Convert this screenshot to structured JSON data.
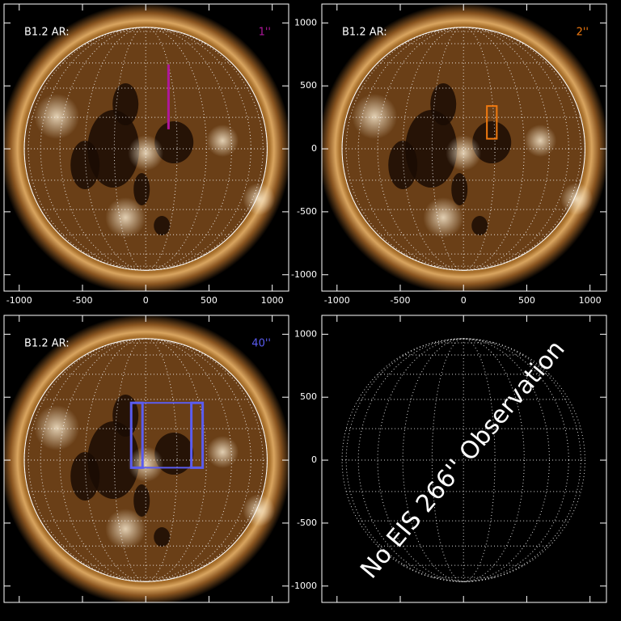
{
  "axes": {
    "xlim": [
      -1120,
      1130
    ],
    "ylim": [
      -1130,
      1150
    ],
    "xticks": [
      -1000,
      -500,
      0,
      500,
      1000
    ],
    "yticks": [
      -1000,
      -500,
      0,
      500,
      1000
    ]
  },
  "panels": [
    {
      "label": "B1.2 AR:",
      "slit": "1''",
      "color": "#b0179b",
      "box": {
        "x": [
          175,
          185
        ],
        "y": [
          155,
          670
        ]
      }
    },
    {
      "label": "B1.2 AR:",
      "slit": "2''",
      "color": "#f07a10",
      "box": {
        "x": [
          185,
          263
        ],
        "y": [
          80,
          340
        ]
      }
    },
    {
      "label": "B1.2 AR:",
      "slit": "40''",
      "color": "#5a5cf0",
      "box": {
        "x": [
          -115,
          450
        ],
        "y": [
          -60,
          455
        ]
      }
    }
  ],
  "empty_panel": {
    "text": "No EIS 266'' Observation"
  }
}
